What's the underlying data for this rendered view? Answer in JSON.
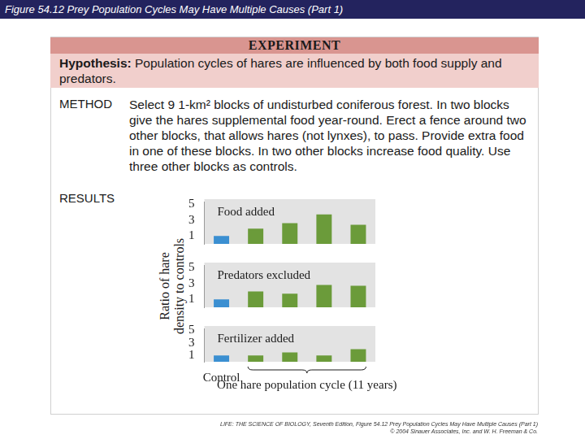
{
  "header": {
    "title": "Figure 54.12  Prey Population Cycles May Have Multiple Causes (Part 1)"
  },
  "experiment": {
    "title": "EXPERIMENT",
    "hypothesis_label": "Hypothesis:",
    "hypothesis": "Population cycles of hares are influenced by both food supply and predators.",
    "method_label": "METHOD",
    "method": "Select 9 1-km² blocks of undisturbed coniferous forest. In two blocks give the hares supplemental food year-round. Erect a fence around two other blocks, that allows hares (not lynxes), to pass. Provide extra food in one of these blocks. In two other blocks increase food quality. Use three other blocks as controls.",
    "results_label": "RESULTS"
  },
  "results": {
    "y_label": [
      "Ratio of hare",
      "density to controls"
    ]
  },
  "chart_data": [
    {
      "type": "bar",
      "title": "Food added",
      "categories": [
        "Control",
        null,
        null,
        null,
        null
      ],
      "values": [
        1,
        1.9,
        2.6,
        3.7,
        2.4
      ],
      "colors": [
        "#3b8fd1",
        "#6b9b3a",
        "#6b9b3a",
        "#6b9b3a",
        "#6b9b3a"
      ],
      "ylim": [
        0,
        5.3
      ],
      "yticks": [
        1,
        3,
        5
      ],
      "grid": false,
      "tick_labels": "y"
    },
    {
      "type": "bar",
      "title": "Predators excluded",
      "categories": [
        "Control",
        null,
        null,
        null,
        null
      ],
      "values": [
        1,
        2.0,
        1.7,
        2.8,
        2.7
      ],
      "colors": [
        "#3b8fd1",
        "#6b9b3a",
        "#6b9b3a",
        "#6b9b3a",
        "#6b9b3a"
      ],
      "ylim": [
        0,
        5.3
      ],
      "yticks": [
        1,
        3,
        5
      ],
      "grid": false,
      "tick_labels": "y"
    },
    {
      "type": "bar",
      "title": "Fertilizer added",
      "categories": [
        "Control",
        null,
        null,
        null,
        null
      ],
      "values": [
        1,
        1.0,
        1.5,
        1.0,
        2.0
      ],
      "colors": [
        "#3b8fd1",
        "#6b9b3a",
        "#6b9b3a",
        "#6b9b3a",
        "#6b9b3a"
      ],
      "ylim": [
        0,
        5.3
      ],
      "yticks": [
        1,
        3,
        5
      ],
      "grid": false,
      "annotation": "One hare population cycle (11 years)"
    }
  ],
  "footer": {
    "source": "LIFE: THE SCIENCE OF BIOLOGY, Seventh Edition, Figure 54.12 Prey Population Cycles May Have Multiple Causes (Part 1)",
    "copyright": "© 2004 Sinauer Associates, Inc. and W. H. Freeman & Co."
  }
}
